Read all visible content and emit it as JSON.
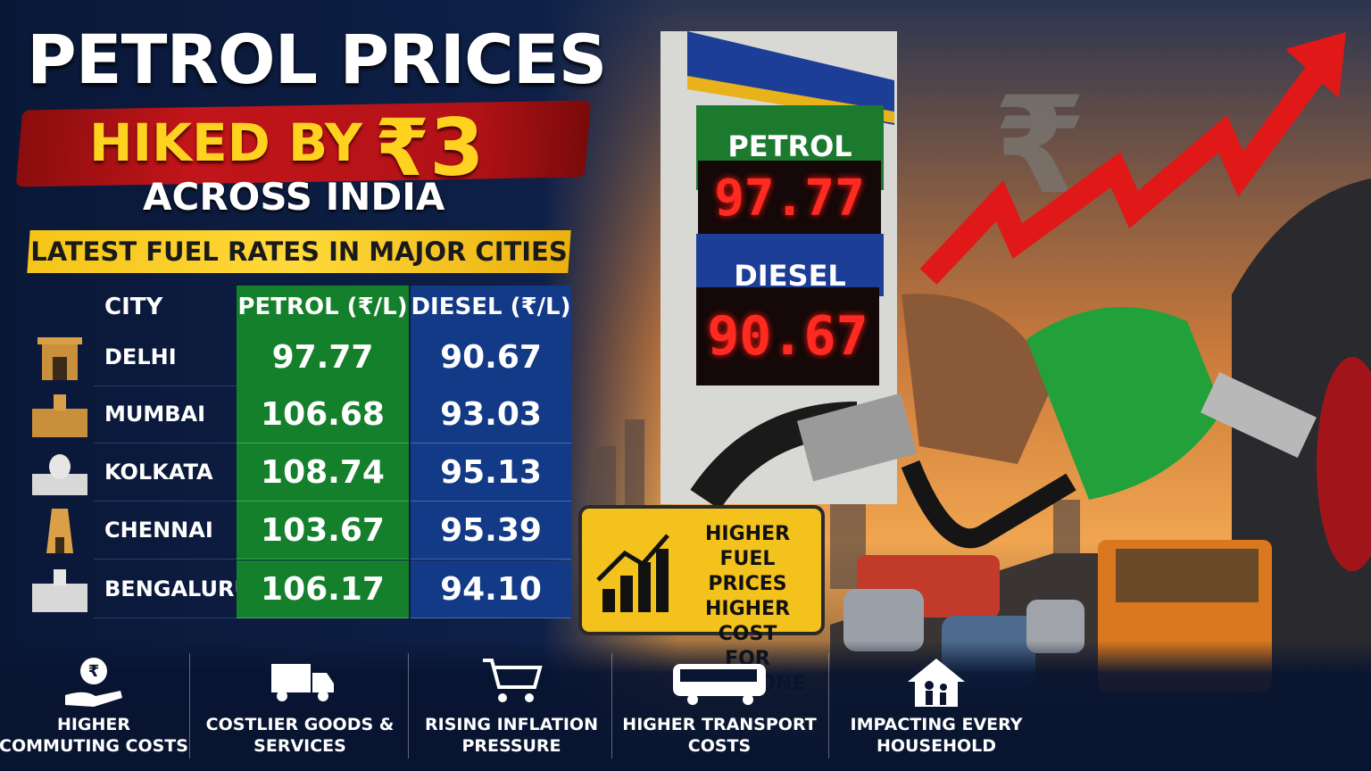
{
  "header": {
    "title": "PETROL PRICES",
    "hike_text": "HIKED BY",
    "hike_amount": "₹3",
    "scope": "ACROSS INDIA",
    "banner": "LATEST FUEL RATES IN MAJOR CITIES"
  },
  "table": {
    "columns": [
      "CITY",
      "PETROL (₹/L)",
      "DIESEL (₹/L)"
    ],
    "rows": [
      [
        "DELHI",
        "97.77",
        "90.67"
      ],
      [
        "MUMBAI",
        "106.68",
        "93.03"
      ],
      [
        "KOLKATA",
        "108.74",
        "95.13"
      ],
      [
        "CHENNAI",
        "103.67",
        "95.39"
      ],
      [
        "BENGALURU",
        "106.17",
        "94.10"
      ]
    ]
  },
  "pump_sign": {
    "petrol_label": "PETROL",
    "petrol_price": "97.77",
    "diesel_label": "DIESEL",
    "diesel_price": "90.67"
  },
  "warning_sign": {
    "lines": [
      "HIGHER",
      "FUEL PRICES",
      "HIGHER COST",
      "FOR EVERYONE"
    ]
  },
  "impacts": [
    {
      "label": "HIGHER COMMUTING COSTS"
    },
    {
      "label": "COSTLIER GOODS & SERVICES"
    },
    {
      "label": "RISING INFLATION PRESSURE"
    },
    {
      "label": "HIGHER TRANSPORT COSTS"
    },
    {
      "label": "IMPACTING EVERY HOUSEHOLD"
    }
  ]
}
